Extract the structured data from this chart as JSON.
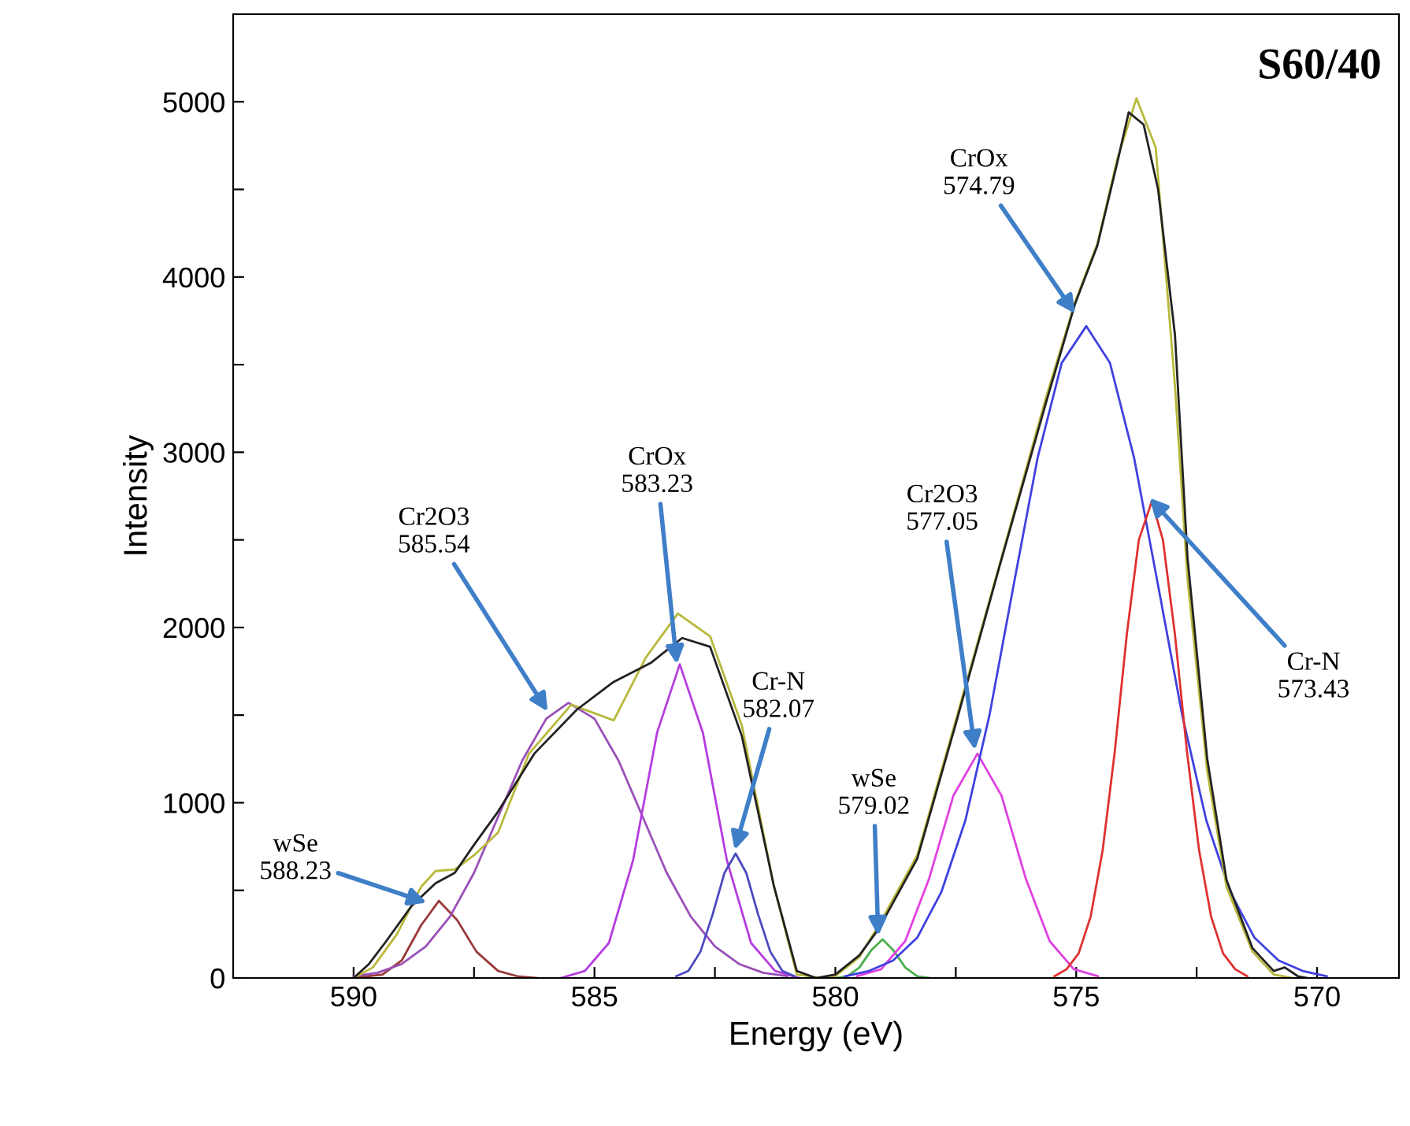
{
  "chart_data": {
    "type": "line",
    "title": "S60/40",
    "xlabel": "Energy (eV)",
    "ylabel": "Intensity",
    "xlim": [
      592.5,
      568.3
    ],
    "ylim": [
      0,
      5500
    ],
    "xticks": [
      590,
      {
        "value": 587.5,
        "label": null
      },
      585,
      {
        "value": 582.5,
        "label": null
      },
      580,
      {
        "value": 577.5,
        "label": null
      },
      575,
      {
        "value": 572.5,
        "label": null
      },
      570
    ],
    "yticks": [
      0,
      {
        "value": 500,
        "label": null
      },
      1000,
      {
        "value": 1500,
        "label": null
      },
      2000,
      {
        "value": 2500,
        "label": null
      },
      3000,
      {
        "value": 3500,
        "label": null
      },
      4000,
      {
        "value": 4500,
        "label": null
      },
      5000
    ],
    "grid": false,
    "legend": false,
    "marker": "none",
    "line_style": "solid",
    "series": [
      {
        "color": "#9a3a3a",
        "x": [
          590.0,
          589.4,
          589.0,
          588.6,
          588.23,
          587.85,
          587.45,
          587.0,
          586.6,
          586.2
        ],
        "values": [
          0,
          20,
          100,
          300,
          440,
          330,
          150,
          40,
          10,
          0
        ]
      },
      {
        "color": "#9a4fb8",
        "x": [
          590.0,
          589.5,
          589.0,
          588.5,
          588.0,
          587.5,
          587.0,
          586.5,
          586.0,
          585.54,
          585.0,
          584.5,
          584.0,
          583.5,
          583.0,
          582.5,
          582.0,
          581.5,
          581.0
        ],
        "values": [
          10,
          30,
          80,
          180,
          350,
          600,
          920,
          1240,
          1480,
          1570,
          1480,
          1240,
          920,
          600,
          350,
          180,
          80,
          30,
          10
        ]
      },
      {
        "color": "#b43ce0",
        "x": [
          585.7,
          585.2,
          584.7,
          584.2,
          583.7,
          583.23,
          582.75,
          582.25,
          581.75,
          581.25,
          580.75
        ],
        "values": [
          0,
          40,
          200,
          670,
          1400,
          1790,
          1400,
          670,
          200,
          40,
          0
        ]
      },
      {
        "color": "#4a4ac0",
        "x": [
          583.3,
          583.05,
          582.8,
          582.55,
          582.3,
          582.07,
          581.85,
          581.6,
          581.35,
          581.1,
          580.85
        ],
        "values": [
          10,
          40,
          150,
          360,
          600,
          710,
          600,
          360,
          150,
          40,
          10
        ]
      },
      {
        "color": "#4caf50",
        "x": [
          580.0,
          579.75,
          579.5,
          579.25,
          579.02,
          578.8,
          578.55,
          578.3,
          578.05
        ],
        "values": [
          0,
          10,
          60,
          160,
          220,
          160,
          60,
          10,
          0
        ]
      },
      {
        "color": "#e040e0",
        "x": [
          579.55,
          579.05,
          578.55,
          578.05,
          577.55,
          577.05,
          576.55,
          576.05,
          575.55,
          575.05,
          574.55
        ],
        "values": [
          10,
          50,
          210,
          570,
          1040,
          1280,
          1040,
          570,
          210,
          50,
          10
        ]
      },
      {
        "color": "#4040e0",
        "x": [
          579.8,
          579.3,
          578.8,
          578.3,
          577.8,
          577.3,
          576.8,
          576.3,
          575.8,
          575.3,
          574.79,
          574.3,
          573.8,
          573.3,
          572.8,
          572.3,
          571.8,
          571.3,
          570.8,
          570.3,
          569.8
        ],
        "values": [
          10,
          40,
          100,
          230,
          490,
          900,
          1500,
          2240,
          2970,
          3510,
          3720,
          3510,
          2970,
          2240,
          1500,
          900,
          490,
          230,
          100,
          40,
          10
        ]
      },
      {
        "color": "#e03030",
        "x": [
          575.45,
          575.2,
          574.95,
          574.7,
          574.45,
          574.2,
          573.95,
          573.7,
          573.43,
          573.2,
          572.95,
          572.7,
          572.45,
          572.2,
          571.95,
          571.7,
          571.45
        ],
        "values": [
          10,
          50,
          140,
          350,
          730,
          1290,
          1960,
          2500,
          2720,
          2500,
          1960,
          1290,
          730,
          350,
          140,
          50,
          10
        ]
      },
      {
        "color": "#b8b83a",
        "x": [
          590.0,
          589.6,
          589.1,
          588.6,
          588.3,
          587.9,
          587.5,
          587.0,
          586.36,
          585.48,
          584.6,
          583.93,
          583.27,
          582.6,
          581.94,
          581.28,
          580.8,
          580.3,
          580.0,
          579.5,
          579.1,
          578.3,
          577.5,
          576.56,
          575.63,
          575.02,
          574.56,
          574.15,
          573.75,
          573.35,
          572.95,
          572.69,
          572.28,
          571.88,
          571.34,
          570.9,
          570.5
        ],
        "values": [
          0,
          60,
          250,
          520,
          610,
          620,
          700,
          830,
          1280,
          1560,
          1470,
          1830,
          2080,
          1950,
          1440,
          530,
          20,
          0,
          10,
          120,
          300,
          700,
          1470,
          2390,
          3310,
          3860,
          4190,
          4670,
          5020,
          4740,
          3380,
          2280,
          1180,
          520,
          150,
          20,
          0
        ]
      },
      {
        "color": "#222222",
        "x": [
          590.0,
          589.68,
          589.35,
          588.8,
          588.3,
          587.9,
          587.5,
          587.0,
          586.25,
          585.37,
          584.6,
          583.82,
          583.18,
          582.6,
          581.94,
          581.28,
          580.8,
          580.4,
          580.0,
          579.5,
          579.1,
          578.3,
          577.5,
          576.56,
          575.63,
          575.02,
          574.56,
          574.15,
          573.91,
          573.6,
          573.3,
          572.95,
          572.69,
          572.28,
          571.88,
          571.34,
          570.9,
          570.67,
          570.4,
          570.2
        ],
        "values": [
          0,
          80,
          200,
          410,
          540,
          600,
          760,
          950,
          1280,
          1530,
          1690,
          1800,
          1940,
          1890,
          1380,
          530,
          40,
          0,
          20,
          130,
          280,
          680,
          1450,
          2380,
          3280,
          3850,
          4180,
          4650,
          4940,
          4870,
          4500,
          3670,
          2400,
          1250,
          560,
          170,
          40,
          60,
          10,
          0
        ]
      }
    ],
    "annotations": [
      {
        "text": "wSe\n588.23",
        "x": 588.48,
        "y": 430
      },
      {
        "text": "Cr2O3\n585.54",
        "x": 585.97,
        "y": 1520
      },
      {
        "text": "CrOx\n583.23",
        "x": 583.29,
        "y": 1790
      },
      {
        "text": "Cr-N\n582.07",
        "x": 582.09,
        "y": 730
      },
      {
        "text": "wSe\n579.02",
        "x": 579.11,
        "y": 240
      },
      {
        "text": "Cr2O3\n577.05",
        "x": 577.1,
        "y": 1300
      },
      {
        "text": "CrOx\n574.79",
        "x": 575.02,
        "y": 3790
      },
      {
        "text": "Cr-N\n573.43",
        "x": 573.48,
        "y": 2740
      }
    ]
  }
}
